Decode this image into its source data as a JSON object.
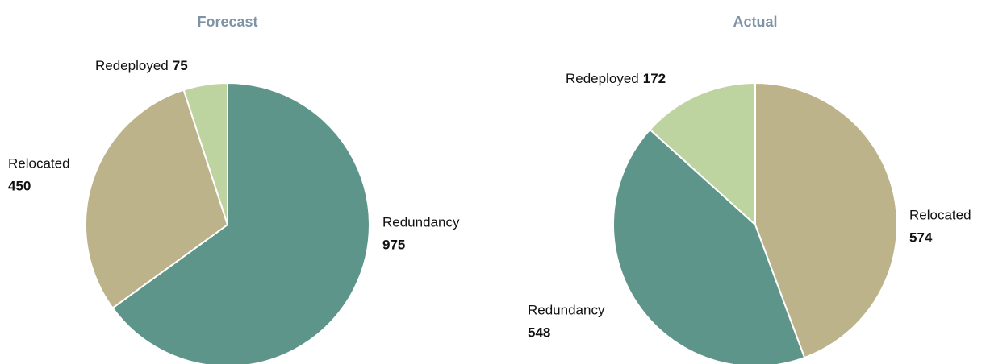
{
  "chart_data": [
    {
      "type": "pie",
      "title": "Forecast",
      "categories": [
        "Redundancy",
        "Relocated",
        "Redeployed"
      ],
      "values": [
        975,
        450,
        75
      ],
      "colors": [
        "#5e958a",
        "#bdb38a",
        "#bed4a0"
      ]
    },
    {
      "type": "pie",
      "title": "Actual",
      "categories": [
        "Relocated",
        "Redundancy",
        "Redeployed"
      ],
      "values": [
        574,
        548,
        172
      ],
      "colors": [
        "#bdb38a",
        "#5e958a",
        "#bed4a0"
      ]
    }
  ]
}
